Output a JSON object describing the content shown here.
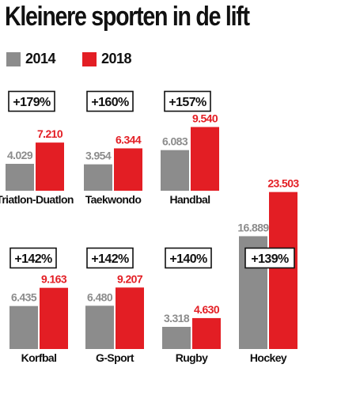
{
  "title": "Kleinere sporten in de lift",
  "colors": {
    "y2014": "#8c8c8c",
    "y2018": "#e31e24"
  },
  "legend": [
    {
      "label": "2014",
      "color": "#8c8c8c"
    },
    {
      "label": "2018",
      "color": "#e31e24"
    }
  ],
  "chart_data": {
    "type": "bar",
    "title": "Kleinere sporten in de lift",
    "series": [
      {
        "name": "2014",
        "values": [
          4029,
          3954,
          6083,
          16889,
          6435,
          6480,
          3318
        ]
      },
      {
        "name": "2018",
        "values": [
          7210,
          6344,
          9540,
          23503,
          9163,
          9207,
          4630
        ]
      }
    ],
    "categories": [
      "Triatlon-Duatlon",
      "Taekwondo",
      "Handbal",
      "Hockey",
      "Korfbal",
      "G-Sport",
      "Rugby"
    ],
    "labels_2014": [
      "4.029",
      "3.954",
      "6.083",
      "16.889",
      "6.435",
      "6.480",
      "3.318"
    ],
    "labels_2018": [
      "7.210",
      "6.344",
      "9.540",
      "23.503",
      "9.163",
      "9.207",
      "4.630"
    ],
    "growth": [
      "+179%",
      "+160%",
      "+157%",
      "+139%",
      "+142%",
      "+142%",
      "+140%"
    ],
    "grid": false,
    "legend_position": "top-left"
  }
}
